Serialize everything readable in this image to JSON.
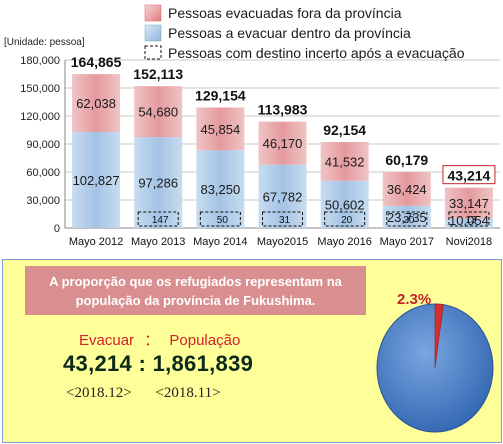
{
  "legend": {
    "items": [
      {
        "label": "Pessoas evacuadas fora da província",
        "swatch": "red-gradient"
      },
      {
        "label": "Pessoas a evacuar dentro  da província",
        "swatch": "blue-gradient"
      },
      {
        "label": "Pessoas com destino incerto após a evacuação",
        "swatch": "dashed-box"
      }
    ]
  },
  "chart_data": {
    "type": "bar",
    "stacked": true,
    "unit_label": "[Unidade: pessoa]",
    "categories": [
      "Mayo 2012",
      "Mayo 2013",
      "Mayo 2014",
      "Mayo2015",
      "Mayo 2016",
      "Mayo 2017",
      "Novi2018"
    ],
    "series": [
      {
        "name": "Pessoas a evacuar dentro  da província",
        "values": [
          102827,
          97286,
          83250,
          67782,
          50602,
          23735,
          10054
        ],
        "color": "#a9c9e8"
      },
      {
        "name": "Pessoas evacuadas fora da província",
        "values": [
          62038,
          54680,
          45854,
          46170,
          41532,
          36424,
          33147
        ],
        "color": "#e8a6a8"
      },
      {
        "name": "Pessoas com destino incerto após a evacuação",
        "values": [
          0,
          147,
          50,
          31,
          20,
          20,
          13
        ]
      }
    ],
    "value_labels": {
      "inside": [
        "102,827",
        "97,286",
        "83,250",
        "67,782",
        "50,602",
        "23,735",
        "10,054"
      ],
      "outside": [
        "62,038",
        "54,680",
        "45,854",
        "46,170",
        "41,532",
        "36,424",
        "33,147"
      ],
      "uncertain": [
        "",
        "147",
        "50",
        "31",
        "20",
        "20",
        "13"
      ]
    },
    "totals": [
      164865,
      152113,
      129154,
      113983,
      92154,
      60179,
      43214
    ],
    "total_labels": [
      "164,865",
      "152,113",
      "129,154",
      "113,983",
      "92,154",
      "60,179",
      "43,214"
    ],
    "ylim": [
      0,
      180000
    ],
    "yticks": [
      0,
      30000,
      60000,
      90000,
      120000,
      150000,
      180000
    ],
    "ytick_labels": [
      "0",
      "30,000",
      "60,000",
      "90,000",
      "120,000",
      "150,000",
      "180,000"
    ],
    "grid": true,
    "xlabel": "",
    "ylabel": ""
  },
  "panel": {
    "headline_line1": "A proporção que os refugiados representam na",
    "headline_line2": "população da província de Fukushima.",
    "label_evacuate": "Evacuar",
    "label_colon": "：",
    "label_population": "População",
    "value_evacuees": "43,214",
    "value_sep": ":",
    "value_population": "1,861,839",
    "date_evacuees": "<2018.12>",
    "date_population": "<2018.11>"
  },
  "pie_data": {
    "type": "pie",
    "values": [
      2.3,
      97.7
    ],
    "percent_label": "2.3%",
    "colors": [
      "#d0302e",
      "#3f78c6"
    ]
  }
}
